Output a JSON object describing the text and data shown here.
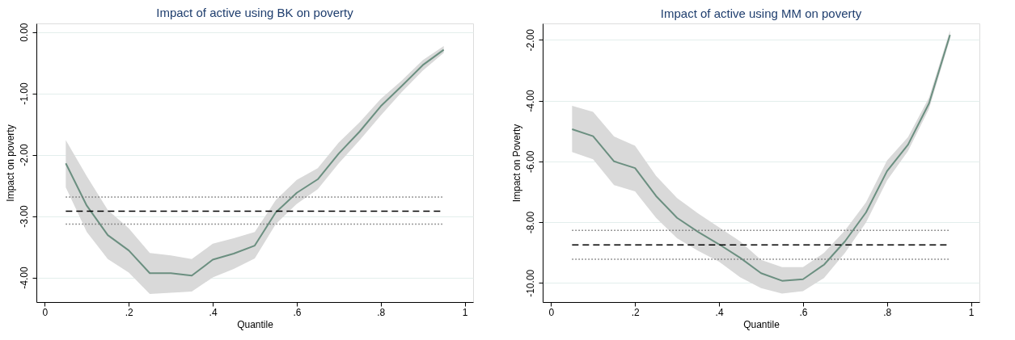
{
  "chart_data": [
    {
      "type": "line",
      "title": "Impact of active using BK on poverty",
      "xlabel": "Quantile",
      "ylabel": "Impact on poverty",
      "x": [
        0.05,
        0.1,
        0.15,
        0.2,
        0.25,
        0.3,
        0.35,
        0.4,
        0.45,
        0.5,
        0.55,
        0.6,
        0.65,
        0.7,
        0.75,
        0.8,
        0.85,
        0.9,
        0.95
      ],
      "series": [
        {
          "color": "#6b8f80",
          "values": [
            -2.14,
            -2.83,
            -3.31,
            -3.56,
            -3.93,
            -3.93,
            -3.97,
            -3.71,
            -3.61,
            -3.48,
            -2.94,
            -2.62,
            -2.4,
            -1.98,
            -1.62,
            -1.21,
            -0.88,
            -0.54,
            -0.29
          ],
          "lower": [
            -2.53,
            -3.26,
            -3.7,
            -3.92,
            -4.27,
            -4.25,
            -4.23,
            -4.0,
            -3.86,
            -3.69,
            -3.13,
            -2.8,
            -2.56,
            -2.14,
            -1.76,
            -1.36,
            -0.98,
            -0.63,
            -0.34
          ],
          "upper": [
            -1.76,
            -2.35,
            -2.9,
            -3.2,
            -3.6,
            -3.64,
            -3.7,
            -3.45,
            -3.36,
            -3.26,
            -2.74,
            -2.41,
            -2.22,
            -1.8,
            -1.47,
            -1.09,
            -0.79,
            -0.46,
            -0.23
          ]
        }
      ],
      "ref_lines": [
        {
          "axis": "y",
          "value": -2.92,
          "color": "#000000",
          "line_style": "dashed"
        },
        {
          "axis": "y",
          "value": -2.69,
          "color": "#777777",
          "line_style": "dotted"
        },
        {
          "axis": "y",
          "value": -3.13,
          "color": "#777777",
          "line_style": "dotted"
        }
      ],
      "xlim": [
        -0.02,
        1.02
      ],
      "ylim": [
        -4.4,
        0.14
      ],
      "xticks": [
        {
          "value": 0,
          "label": "0"
        },
        {
          "value": 0.2,
          "label": ".2"
        },
        {
          "value": 0.4,
          "label": ".4"
        },
        {
          "value": 0.6,
          "label": ".6"
        },
        {
          "value": 0.8,
          "label": ".8"
        },
        {
          "value": 1,
          "label": "1"
        }
      ],
      "yticks": [
        {
          "value": -4,
          "label": "-4.00"
        },
        {
          "value": -3,
          "label": "-3.00"
        },
        {
          "value": -2,
          "label": "-2.00"
        },
        {
          "value": -1,
          "label": "-1.00"
        },
        {
          "value": 0,
          "label": "0.00"
        }
      ],
      "grid": "y",
      "marker": "none",
      "line_style": "solid"
    },
    {
      "type": "line",
      "title": "Impact of active using MM on poverty",
      "xlabel": "Quantile",
      "ylabel": "Impact on Poverty",
      "x": [
        0.05,
        0.1,
        0.15,
        0.2,
        0.25,
        0.3,
        0.35,
        0.4,
        0.45,
        0.5,
        0.55,
        0.6,
        0.65,
        0.7,
        0.75,
        0.8,
        0.85,
        0.9,
        0.95
      ],
      "series": [
        {
          "color": "#6b8f80",
          "values": [
            -4.94,
            -5.17,
            -6.0,
            -6.22,
            -7.14,
            -7.86,
            -8.32,
            -8.73,
            -9.17,
            -9.68,
            -9.93,
            -9.88,
            -9.4,
            -8.63,
            -7.68,
            -6.32,
            -5.45,
            -4.09,
            -1.84
          ],
          "lower": [
            -5.69,
            -5.93,
            -6.78,
            -6.99,
            -7.86,
            -8.53,
            -8.94,
            -9.3,
            -9.81,
            -10.17,
            -10.35,
            -10.27,
            -9.84,
            -9.01,
            -8.01,
            -6.63,
            -5.66,
            -4.27,
            -1.97
          ],
          "upper": [
            -4.17,
            -4.37,
            -5.18,
            -5.49,
            -6.48,
            -7.21,
            -7.71,
            -8.17,
            -8.63,
            -9.24,
            -9.48,
            -9.48,
            -9.01,
            -8.27,
            -7.35,
            -5.97,
            -5.2,
            -3.9,
            -1.69
          ]
        }
      ],
      "ref_lines": [
        {
          "axis": "y",
          "value": -8.75,
          "color": "#000000",
          "line_style": "dashed"
        },
        {
          "axis": "y",
          "value": -8.27,
          "color": "#777777",
          "line_style": "dotted"
        },
        {
          "axis": "y",
          "value": -9.22,
          "color": "#777777",
          "line_style": "dotted"
        }
      ],
      "xlim": [
        -0.02,
        1.02
      ],
      "ylim": [
        -10.63,
        -1.46
      ],
      "xticks": [
        {
          "value": 0,
          "label": "0"
        },
        {
          "value": 0.2,
          "label": ".2"
        },
        {
          "value": 0.4,
          "label": ".4"
        },
        {
          "value": 0.6,
          "label": ".6"
        },
        {
          "value": 0.8,
          "label": ".8"
        },
        {
          "value": 1,
          "label": "1"
        }
      ],
      "yticks": [
        {
          "value": -10,
          "label": "-10.00"
        },
        {
          "value": -8,
          "label": "-8.00"
        },
        {
          "value": -6,
          "label": "-6.00"
        },
        {
          "value": -4,
          "label": "-4.00"
        },
        {
          "value": -2,
          "label": "-2.00"
        }
      ],
      "grid": "y",
      "marker": "none",
      "line_style": "solid"
    }
  ]
}
